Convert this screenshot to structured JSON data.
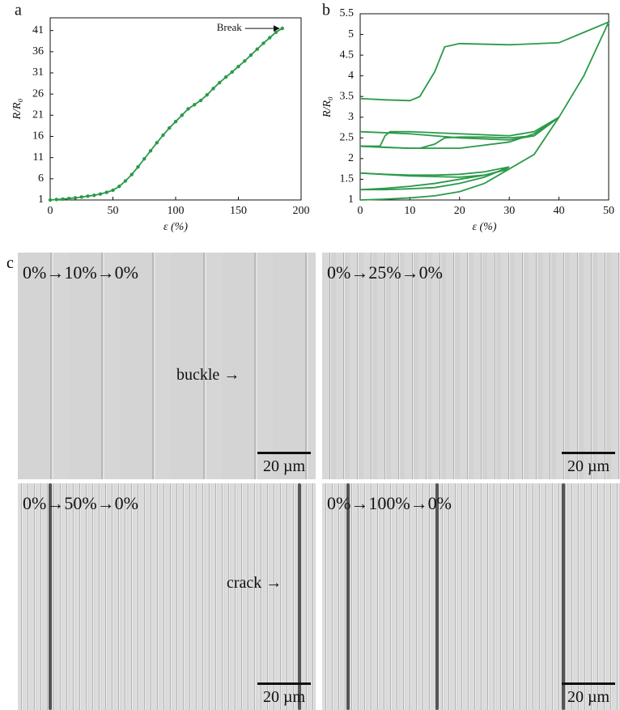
{
  "chart_data": [
    {
      "type": "line",
      "title": "a",
      "x_label": "ε (%)",
      "y_label": "R/R₀",
      "annotation": "Break",
      "color": "#2a9a4a",
      "markers": true,
      "x": [
        0,
        5,
        10,
        15,
        20,
        25,
        30,
        35,
        40,
        45,
        50,
        55,
        60,
        65,
        70,
        75,
        80,
        85,
        90,
        95,
        100,
        105,
        110,
        115,
        120,
        125,
        130,
        135,
        140,
        145,
        150,
        155,
        160,
        165,
        170,
        175,
        180,
        185
      ],
      "values": [
        1,
        1.1,
        1.2,
        1.35,
        1.5,
        1.7,
        1.9,
        2.1,
        2.4,
        2.8,
        3.3,
        4.2,
        5.5,
        7,
        8.8,
        10.7,
        12.6,
        14.5,
        16.3,
        18,
        19.5,
        21,
        22.5,
        23.5,
        24.5,
        25.8,
        27.3,
        28.7,
        30,
        31.2,
        32.5,
        33.8,
        35.2,
        36.6,
        38,
        39.3,
        40.6,
        41.5
      ],
      "xlim": [
        0,
        200
      ],
      "xticks": [
        0,
        50,
        100,
        150,
        200
      ],
      "ylim": [
        1,
        44
      ],
      "yticks": [
        1,
        6,
        11,
        16,
        21,
        26,
        31,
        36,
        41
      ]
    },
    {
      "type": "line",
      "title": "b",
      "x_label": "ε (%)",
      "y_label": "R/R₀",
      "color": "#2a9a4a",
      "markers": false,
      "series": [
        {
          "x": [
            0,
            5,
            10,
            15,
            20,
            25,
            30,
            25,
            20,
            15,
            10,
            5,
            0
          ],
          "values": [
            1.0,
            1.02,
            1.05,
            1.1,
            1.2,
            1.4,
            1.75,
            1.6,
            1.5,
            1.4,
            1.33,
            1.28,
            1.25
          ]
        },
        {
          "x": [
            0,
            5,
            10,
            15,
            20,
            25,
            30,
            25,
            20,
            15,
            10,
            5,
            0
          ],
          "values": [
            1.25,
            1.25,
            1.27,
            1.3,
            1.4,
            1.55,
            1.8,
            1.68,
            1.62,
            1.6,
            1.6,
            1.62,
            1.65
          ]
        },
        {
          "x": [
            0,
            10,
            20,
            25,
            30,
            35,
            40,
            35,
            30,
            25,
            20,
            17,
            15,
            12,
            10,
            5,
            0
          ],
          "values": [
            1.65,
            1.58,
            1.55,
            1.6,
            1.75,
            2.1,
            3.0,
            2.55,
            2.5,
            2.52,
            2.52,
            2.5,
            2.35,
            2.25,
            2.25,
            2.27,
            2.3
          ]
        },
        {
          "x": [
            0,
            4,
            5,
            6,
            10,
            20,
            30,
            35,
            40,
            35,
            30,
            20,
            10,
            0
          ],
          "values": [
            2.3,
            2.3,
            2.55,
            2.65,
            2.65,
            2.6,
            2.55,
            2.65,
            3.0,
            2.55,
            2.45,
            2.5,
            2.6,
            2.65
          ]
        },
        {
          "x": [
            0,
            10,
            20,
            30,
            35,
            40,
            45,
            50,
            45,
            40,
            30,
            20,
            17,
            15,
            12,
            10,
            5,
            0
          ],
          "values": [
            2.3,
            2.25,
            2.25,
            2.4,
            2.6,
            3.0,
            4.0,
            5.3,
            5.05,
            4.8,
            4.75,
            4.78,
            4.7,
            4.1,
            3.5,
            3.4,
            3.42,
            3.45
          ]
        }
      ],
      "xlim": [
        0,
        50
      ],
      "xticks": [
        0,
        10,
        20,
        30,
        40,
        50
      ],
      "ylim": [
        1,
        5.5
      ],
      "yticks": [
        1,
        1.5,
        2,
        2.5,
        3,
        3.5,
        4,
        4.5,
        5,
        5.5
      ]
    }
  ],
  "micrographs": {
    "label": "c",
    "panels": [
      {
        "label": "0%→10%→0%",
        "scale_bar": "20 µm",
        "annotation": "buckle"
      },
      {
        "label": "0%→25%→0%",
        "scale_bar": "20 µm"
      },
      {
        "label": "0%→50%→0%",
        "scale_bar": "20 µm",
        "annotation": "crack"
      },
      {
        "label": "0%→100%→0%",
        "scale_bar": "20 µm"
      }
    ]
  }
}
